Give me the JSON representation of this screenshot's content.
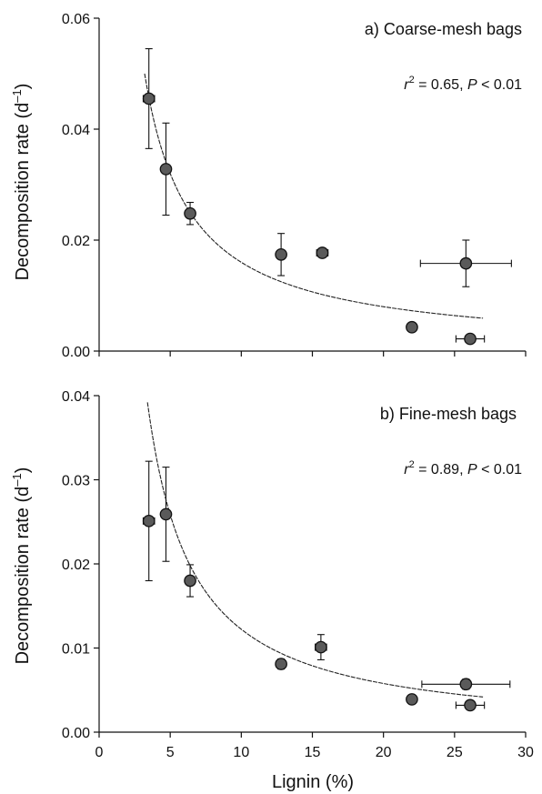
{
  "chart_data": [
    {
      "type": "scatter",
      "panel_label": "a) Coarse-mesh bags",
      "stat": {
        "r2_prefix": "r",
        "r2_sup": "2",
        "r2_text": " = 0.65, ",
        "p_prefix": "P",
        "p_text": " < 0.01"
      },
      "xlabel": "Lignin (%)",
      "ylabel": "Decomposition rate (d",
      "ylabel_sup": "–1",
      "ylabel_close": ")",
      "xlim": [
        0,
        30
      ],
      "ylim": [
        0,
        0.06
      ],
      "xticks": [
        0,
        5,
        10,
        15,
        20,
        25,
        30
      ],
      "xtick_labels": [
        "0",
        "5",
        "10",
        "15",
        "20",
        "25",
        "30"
      ],
      "yticks": [
        0,
        0.02,
        0.04,
        0.06
      ],
      "ytick_labels": [
        "0.00",
        "0.02",
        "0.04",
        "0.06"
      ],
      "points": [
        {
          "x": 3.5,
          "y": 0.0455,
          "xerr": 0.4,
          "yerr": 0.009
        },
        {
          "x": 4.7,
          "y": 0.0328,
          "xerr": 0,
          "yerr": 0.0083
        },
        {
          "x": 6.4,
          "y": 0.0248,
          "xerr": 0,
          "yerr": 0.002
        },
        {
          "x": 12.8,
          "y": 0.0174,
          "xerr": 0,
          "yerr": 0.0038
        },
        {
          "x": 15.7,
          "y": 0.0177,
          "xerr": 0.4,
          "yerr": 0.0008
        },
        {
          "x": 22.0,
          "y": 0.0043,
          "xerr": 0,
          "yerr": 0
        },
        {
          "x": 25.8,
          "y": 0.0158,
          "xerr": 3.2,
          "yerr": 0.0042
        },
        {
          "x": 26.1,
          "y": 0.0022,
          "xerr": 1.0,
          "yerr": 0
        }
      ],
      "fit": {
        "form": "y = a/x",
        "a": 0.16,
        "x_range": [
          3.2,
          27.0
        ]
      }
    },
    {
      "type": "scatter",
      "panel_label": "b) Fine-mesh bags",
      "stat": {
        "r2_prefix": "r",
        "r2_sup": "2",
        "r2_text": " = 0.89, ",
        "p_prefix": "P",
        "p_text": " < 0.01"
      },
      "xlabel": "Lignin (%)",
      "ylabel": "Decomposition rate (d",
      "ylabel_sup": "–1",
      "ylabel_close": ")",
      "xlim": [
        0,
        30
      ],
      "ylim": [
        0,
        0.04
      ],
      "xticks": [
        0,
        5,
        10,
        15,
        20,
        25,
        30
      ],
      "xtick_labels": [
        "0",
        "5",
        "10",
        "15",
        "20",
        "25",
        "30"
      ],
      "yticks": [
        0,
        0.01,
        0.02,
        0.03,
        0.04
      ],
      "ytick_labels": [
        "0.00",
        "0.01",
        "0.02",
        "0.03",
        "0.04"
      ],
      "points": [
        {
          "x": 3.5,
          "y": 0.0251,
          "xerr": 0.4,
          "yerr": 0.0071
        },
        {
          "x": 4.7,
          "y": 0.0259,
          "xerr": 0,
          "yerr": 0.0056
        },
        {
          "x": 6.4,
          "y": 0.018,
          "xerr": 0,
          "yerr": 0.0019
        },
        {
          "x": 12.8,
          "y": 0.0081,
          "xerr": 0,
          "yerr": 0.0006
        },
        {
          "x": 15.6,
          "y": 0.0101,
          "xerr": 0.4,
          "yerr": 0.0015
        },
        {
          "x": 22.0,
          "y": 0.0039,
          "xerr": 0,
          "yerr": 0
        },
        {
          "x": 25.8,
          "y": 0.0057,
          "xerr": 3.1,
          "yerr": 0.0006
        },
        {
          "x": 26.1,
          "y": 0.0032,
          "xerr": 1.0,
          "yerr": 0
        }
      ],
      "fit": {
        "form": "y = a/x^b",
        "a": 0.147,
        "b": 1.08,
        "x_range": [
          3.4,
          27.0
        ]
      }
    }
  ],
  "colors": {
    "marker_fill": "#5a5a5a",
    "marker_stroke": "#111111",
    "axis": "#111111",
    "fit_line": "#222222"
  }
}
